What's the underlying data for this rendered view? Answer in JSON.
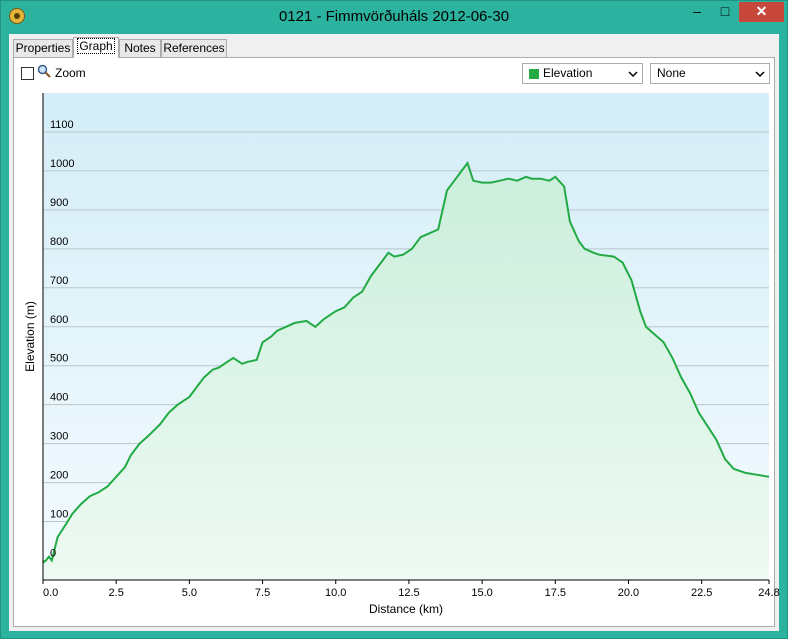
{
  "window": {
    "title": "0121 - Fimmvörðuháls 2012-06-30",
    "minimize_label": "‒",
    "maximize_label": "□",
    "close_label": "✕"
  },
  "tabs": [
    {
      "label": "Properties",
      "active": false
    },
    {
      "label": "Graph",
      "active": true
    },
    {
      "label": "Notes",
      "active": false
    },
    {
      "label": "References",
      "active": false
    }
  ],
  "toolbar": {
    "zoom_label": "Zoom",
    "zoom_checked": false,
    "series_select": {
      "value": "Elevation",
      "color": "#22aa44"
    },
    "second_select": {
      "value": "None"
    }
  },
  "chart_data": {
    "type": "area",
    "xlabel": "Distance  (km)",
    "ylabel": "Elevation (m)",
    "xlim": [
      0,
      24.8
    ],
    "ylim": [
      -50,
      1200
    ],
    "x_ticks": [
      "0.0",
      "2.5",
      "5.0",
      "7.5",
      "10.0",
      "12.5",
      "15.0",
      "17.5",
      "20.0",
      "22.5",
      "24.8"
    ],
    "y_ticks": [
      "0",
      "100",
      "200",
      "300",
      "400",
      "500",
      "600",
      "700",
      "800",
      "900",
      "1000",
      "1100"
    ],
    "grid": true,
    "line_color": "#22aa44",
    "series": [
      {
        "name": "Elevation",
        "x": [
          0,
          0.1,
          0.2,
          0.3,
          0.5,
          0.8,
          1.0,
          1.3,
          1.6,
          1.9,
          2.2,
          2.5,
          2.8,
          3.0,
          3.3,
          3.6,
          4.0,
          4.3,
          4.6,
          5.0,
          5.2,
          5.5,
          5.8,
          6.0,
          6.3,
          6.5,
          6.8,
          7.0,
          7.3,
          7.5,
          7.8,
          8.0,
          8.3,
          8.6,
          9.0,
          9.3,
          9.6,
          9.8,
          10.0,
          10.3,
          10.6,
          10.9,
          11.2,
          11.5,
          11.8,
          12.0,
          12.3,
          12.6,
          12.9,
          13.2,
          13.5,
          13.8,
          14.1,
          14.3,
          14.5,
          14.7,
          15.0,
          15.3,
          15.6,
          15.9,
          16.2,
          16.5,
          16.7,
          17.0,
          17.3,
          17.5,
          17.8,
          18.0,
          18.3,
          18.5,
          18.8,
          19.0,
          19.5,
          19.8,
          20.1,
          20.4,
          20.6,
          20.9,
          21.2,
          21.5,
          21.8,
          22.1,
          22.4,
          22.7,
          23.0,
          23.3,
          23.6,
          24.0,
          24.4,
          24.8
        ],
        "y": [
          -5,
          0,
          10,
          0,
          60,
          95,
          120,
          145,
          165,
          175,
          190,
          215,
          240,
          270,
          300,
          320,
          350,
          380,
          400,
          420,
          440,
          470,
          490,
          495,
          510,
          520,
          505,
          510,
          515,
          560,
          575,
          590,
          600,
          610,
          615,
          600,
          620,
          630,
          640,
          650,
          675,
          690,
          730,
          760,
          790,
          780,
          785,
          800,
          830,
          840,
          850,
          950,
          980,
          1000,
          1020,
          975,
          970,
          970,
          975,
          980,
          975,
          985,
          980,
          980,
          975,
          985,
          960,
          870,
          820,
          800,
          790,
          785,
          780,
          765,
          720,
          640,
          600,
          580,
          560,
          520,
          470,
          430,
          380,
          345,
          310,
          260,
          235,
          225,
          220,
          215
        ]
      }
    ]
  }
}
